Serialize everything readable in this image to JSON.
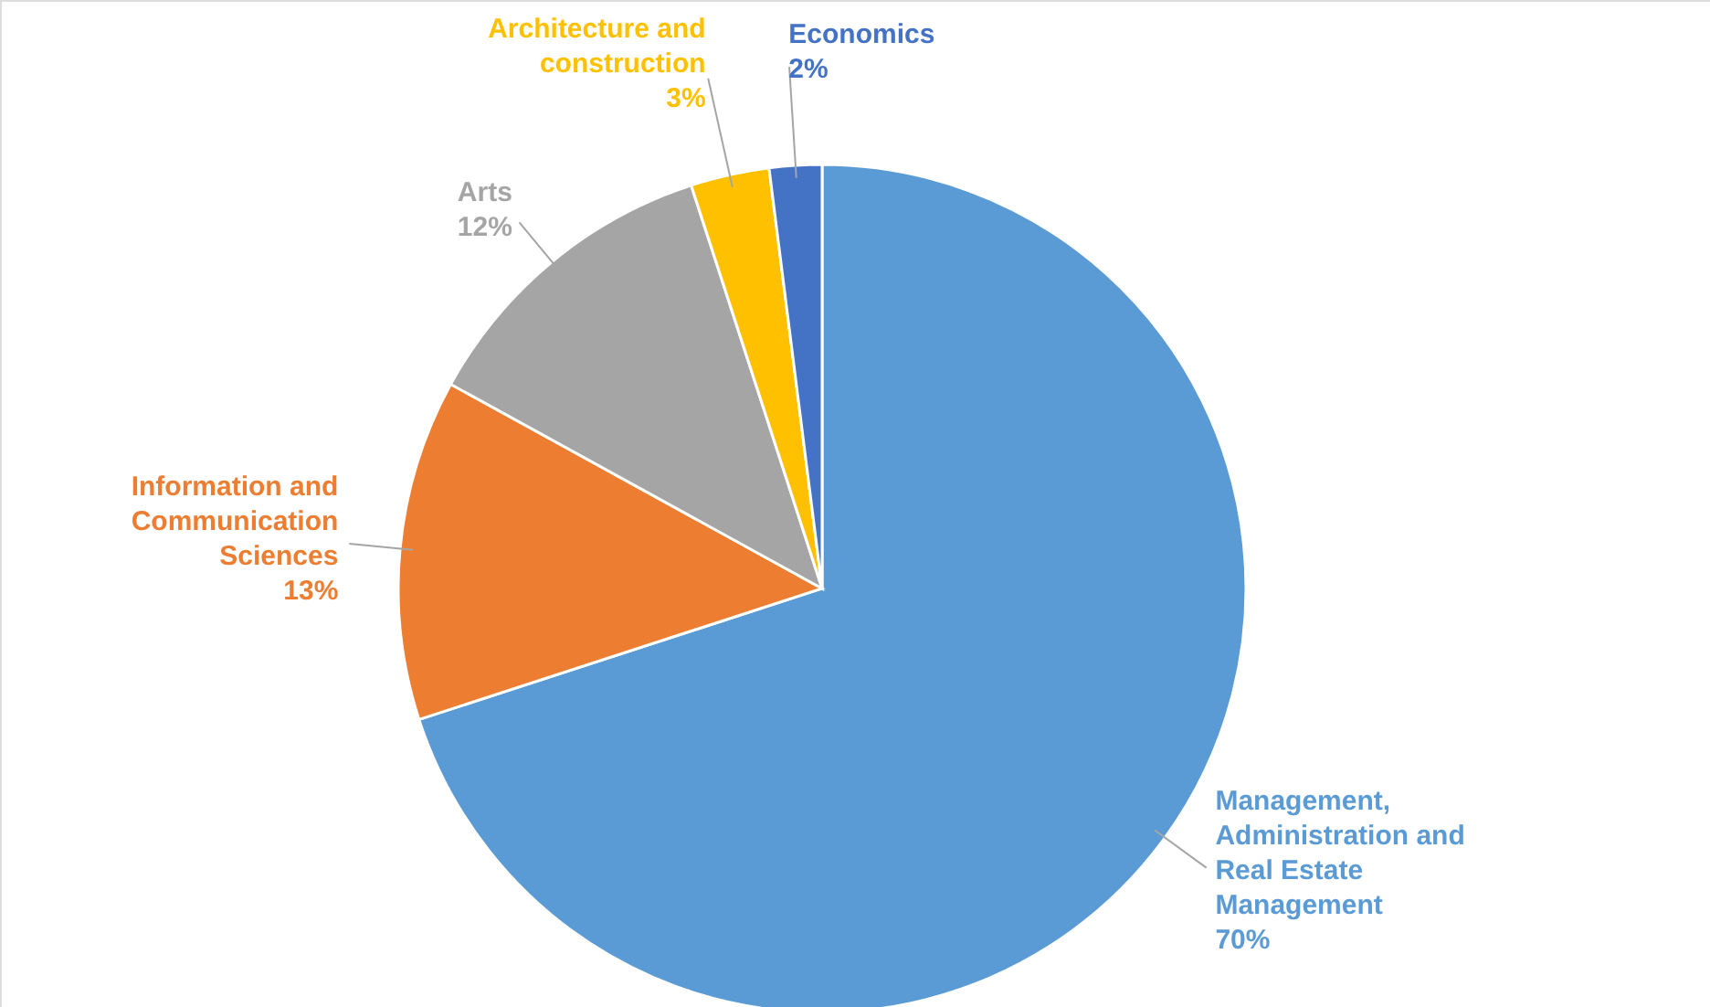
{
  "chart_data": {
    "type": "pie",
    "categories": [
      "Management, Administration and Real Estate Management",
      "Information and Communication Sciences",
      "Arts",
      "Architecture and construction",
      "Economics"
    ],
    "values": [
      70,
      13,
      12,
      3,
      2
    ],
    "value_labels": [
      "70%",
      "13%",
      "12%",
      "3%",
      "2%"
    ],
    "colors": [
      "#5b9bd5",
      "#ed7d31",
      "#a5a5a5",
      "#ffc000",
      "#4472c4"
    ]
  }
}
